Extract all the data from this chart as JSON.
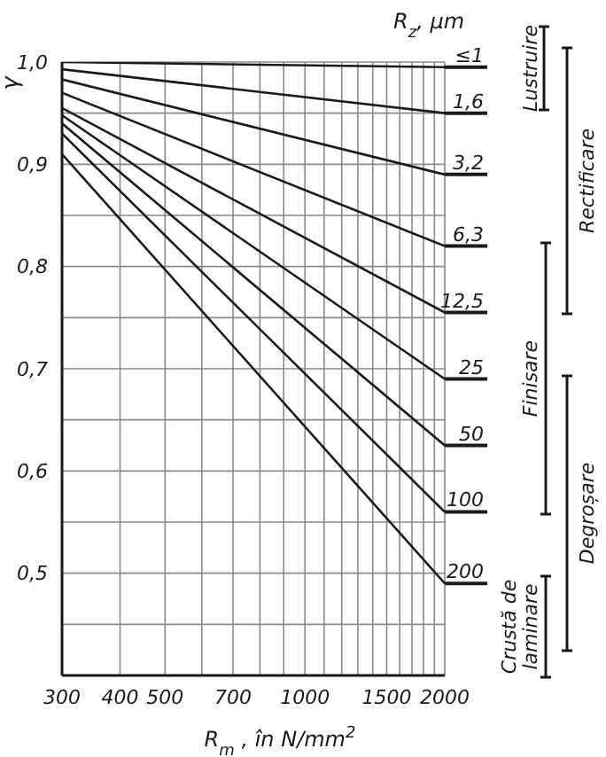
{
  "chart_data": {
    "type": "line",
    "ylabel": "γ",
    "xlabel": "R$_{m}$ , în N/mm$^{2}$",
    "legend_title": "R$_{z}$, μm",
    "log": "x",
    "grid": true,
    "legend": "right",
    "marker": "none",
    "line_style": "solid",
    "x": [
      300,
      2000
    ],
    "xlim": [
      300,
      2000
    ],
    "xticks": [
      300,
      400,
      500,
      {
        "value": 600,
        "label": null
      },
      700,
      {
        "value": 800,
        "label": null
      },
      {
        "value": 900,
        "label": null
      },
      1000,
      {
        "value": 1100,
        "label": null
      },
      {
        "value": 1200,
        "label": null
      },
      {
        "value": 1300,
        "label": null
      },
      {
        "value": 1400,
        "label": null
      },
      1500,
      {
        "value": 1600,
        "label": null
      },
      {
        "value": 1700,
        "label": null
      },
      {
        "value": 1800,
        "label": null
      },
      {
        "value": 1900,
        "label": null
      },
      2000
    ],
    "ylim": [
      0.4,
      1.0
    ],
    "yticks": [
      {
        "value": 0.4,
        "label": null
      },
      {
        "value": 0.45,
        "label": null
      },
      {
        "value": 0.5,
        "label": "0,5"
      },
      {
        "value": 0.55,
        "label": null
      },
      {
        "value": 0.6,
        "label": "0,6"
      },
      {
        "value": 0.65,
        "label": null
      },
      {
        "value": 0.7,
        "label": "0,7"
      },
      {
        "value": 0.75,
        "label": null
      },
      {
        "value": 0.8,
        "label": "0,8"
      },
      {
        "value": 0.85,
        "label": null
      },
      {
        "value": 0.9,
        "label": "0,9"
      },
      {
        "value": 0.95,
        "label": null
      },
      {
        "value": 1.0,
        "label": "1,0"
      }
    ],
    "series": [
      {
        "name": "≤1",
        "color": "#1a1a1a",
        "values": [
          1.0,
          0.995
        ]
      },
      {
        "name": "1,6",
        "color": "#1a1a1a",
        "values": [
          0.993,
          0.95
        ]
      },
      {
        "name": "3,2",
        "color": "#1a1a1a",
        "values": [
          0.983,
          0.89
        ]
      },
      {
        "name": "6,3",
        "color": "#1a1a1a",
        "values": [
          0.97,
          0.82
        ]
      },
      {
        "name": "12,5",
        "color": "#1a1a1a",
        "values": [
          0.955,
          0.755
        ]
      },
      {
        "name": "25",
        "color": "#1a1a1a",
        "values": [
          0.948,
          0.69
        ]
      },
      {
        "name": "50",
        "color": "#1a1a1a",
        "values": [
          0.94,
          0.625
        ]
      },
      {
        "name": "100",
        "color": "#1a1a1a",
        "values": [
          0.93,
          0.56
        ]
      },
      {
        "name": "200",
        "color": "#1a1a1a",
        "values": [
          0.91,
          0.49
        ]
      }
    ],
    "annotations": [
      "Lustruire",
      "Rectificare",
      "Finisare",
      "Degroșare",
      "Crustă de laminare"
    ]
  }
}
